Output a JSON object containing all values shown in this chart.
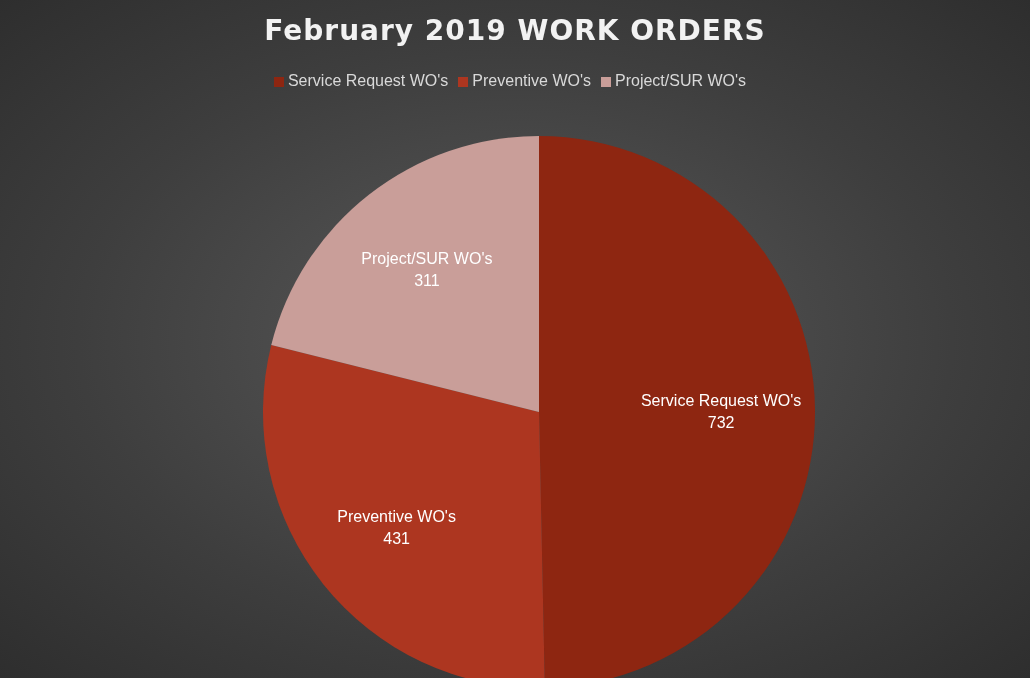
{
  "chart_data": {
    "type": "pie",
    "title": "February 2019 WORK ORDERS",
    "categories": [
      "Service Request WO's",
      "Preventive WO's",
      "Project/SUR WO's"
    ],
    "values": [
      732,
      431,
      311
    ],
    "colors": [
      "#8e2611",
      "#ad3620",
      "#c99e99"
    ],
    "data_labels": true,
    "legend": "top"
  }
}
